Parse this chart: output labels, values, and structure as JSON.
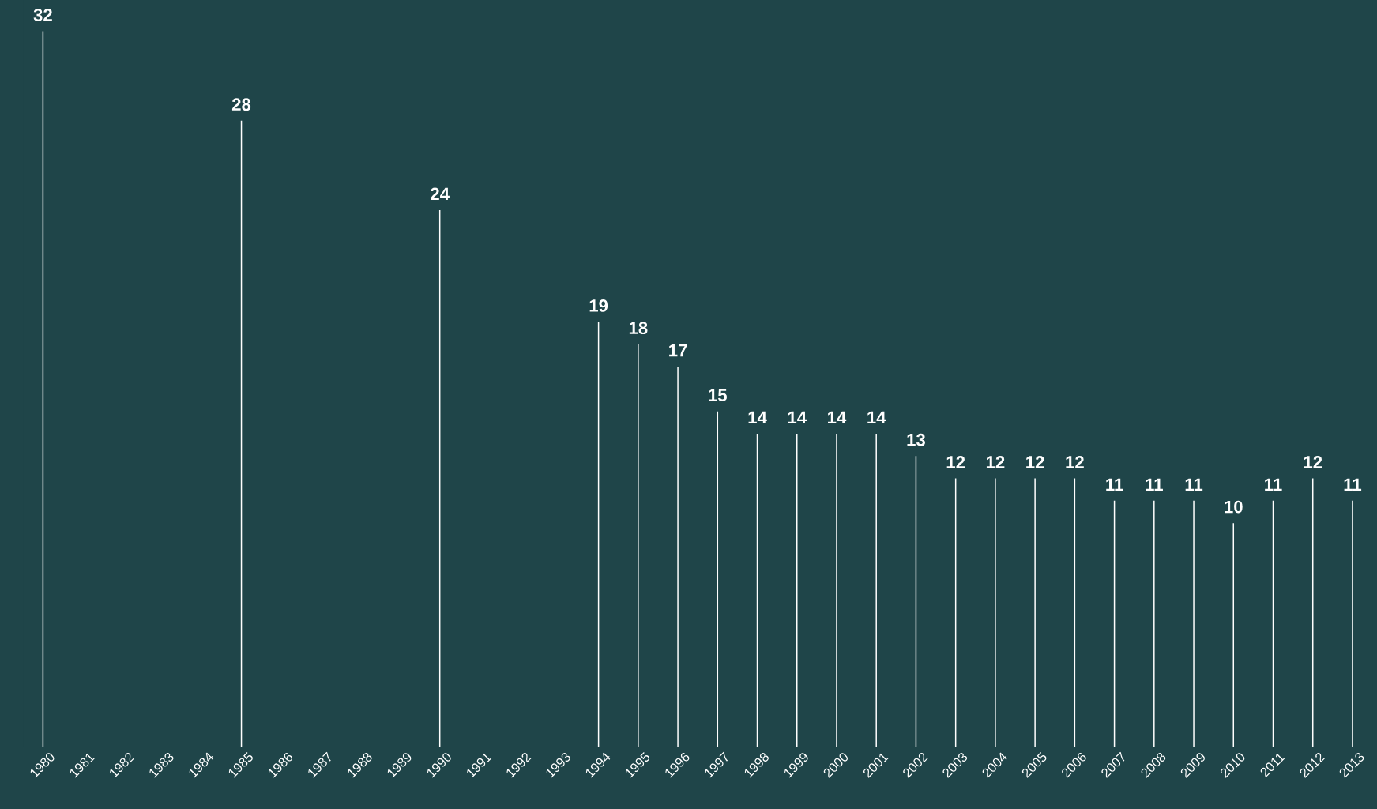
{
  "chart_data": {
    "type": "bar",
    "categories": [
      "1980",
      "1981",
      "1982",
      "1983",
      "1984",
      "1985",
      "1986",
      "1987",
      "1988",
      "1989",
      "1990",
      "1991",
      "1992",
      "1993",
      "1994",
      "1995",
      "1996",
      "1997",
      "1998",
      "1999",
      "2000",
      "2001",
      "2002",
      "2003",
      "2004",
      "2005",
      "2006",
      "2007",
      "2008",
      "2009",
      "2010",
      "2011",
      "2012",
      "2013"
    ],
    "values": [
      32,
      null,
      null,
      null,
      null,
      28,
      null,
      null,
      null,
      null,
      24,
      null,
      null,
      null,
      19,
      18,
      17,
      15,
      14,
      14,
      14,
      14,
      13,
      12,
      12,
      12,
      12,
      11,
      11,
      11,
      10,
      11,
      12,
      11
    ],
    "color": "#ffffff",
    "ylim": [
      0,
      33.4
    ],
    "data_labels": true,
    "tick_labels": "x",
    "grid": false
  }
}
